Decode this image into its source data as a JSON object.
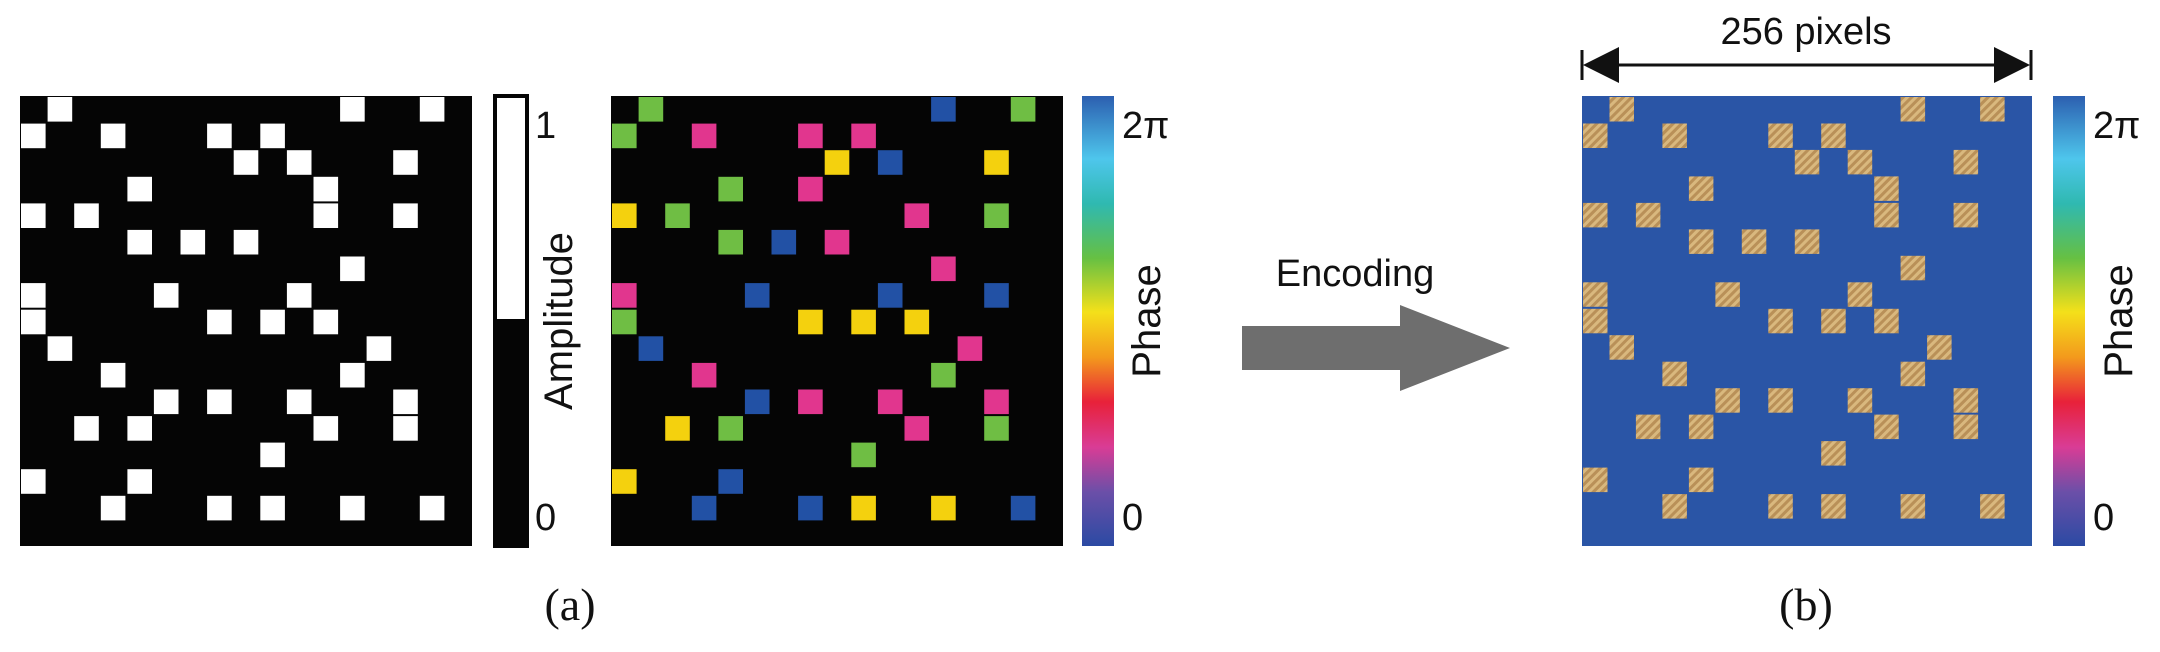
{
  "panel_a": {
    "caption": "(a)",
    "amplitude_bar": {
      "label": "Amplitude",
      "tick_max": "1",
      "tick_min": "0"
    },
    "phase_bar": {
      "label": "Phase",
      "tick_max": "2π",
      "tick_min": "0"
    },
    "grid_size": 16,
    "amplitude_cells": [
      [
        1,
        1
      ],
      [
        15,
        1
      ],
      [
        12,
        1
      ],
      [
        0,
        2
      ],
      [
        3,
        2
      ],
      [
        7,
        2
      ],
      [
        9,
        2
      ],
      [
        8,
        3
      ],
      [
        10,
        3
      ],
      [
        14,
        3
      ],
      [
        4,
        4
      ],
      [
        11,
        4
      ],
      [
        0,
        5
      ],
      [
        2,
        5
      ],
      [
        11,
        5
      ],
      [
        14,
        5
      ],
      [
        4,
        6
      ],
      [
        6,
        6
      ],
      [
        8,
        6
      ],
      [
        12,
        7
      ],
      [
        0,
        8
      ],
      [
        5,
        8
      ],
      [
        10,
        8
      ],
      [
        0,
        9
      ],
      [
        7,
        9
      ],
      [
        9,
        9
      ],
      [
        11,
        9
      ],
      [
        1,
        10
      ],
      [
        13,
        10
      ],
      [
        3,
        11
      ],
      [
        12,
        11
      ],
      [
        5,
        12
      ],
      [
        7,
        12
      ],
      [
        10,
        12
      ],
      [
        14,
        12
      ],
      [
        14,
        13
      ],
      [
        2,
        13
      ],
      [
        4,
        13
      ],
      [
        11,
        13
      ],
      [
        9,
        14
      ],
      [
        0,
        15
      ],
      [
        4,
        15
      ],
      [
        3,
        16
      ],
      [
        7,
        16
      ],
      [
        9,
        16
      ],
      [
        12,
        16
      ],
      [
        15,
        16
      ]
    ],
    "phase_cells": [
      [
        1,
        1,
        "green"
      ],
      [
        12,
        1,
        "blue"
      ],
      [
        15,
        1,
        "green"
      ],
      [
        0,
        2,
        "green"
      ],
      [
        3,
        2,
        "magenta"
      ],
      [
        7,
        2,
        "magenta"
      ],
      [
        9,
        2,
        "magenta"
      ],
      [
        8,
        3,
        "yellow"
      ],
      [
        10,
        3,
        "blue"
      ],
      [
        14,
        3,
        "yellow"
      ],
      [
        4,
        4,
        "green"
      ],
      [
        7,
        4,
        "magenta"
      ],
      [
        0,
        5,
        "yellow"
      ],
      [
        2,
        5,
        "green"
      ],
      [
        11,
        5,
        "magenta"
      ],
      [
        14,
        5,
        "green"
      ],
      [
        4,
        6,
        "green"
      ],
      [
        6,
        6,
        "blue"
      ],
      [
        8,
        6,
        "magenta"
      ],
      [
        12,
        7,
        "magenta"
      ],
      [
        0,
        8,
        "magenta"
      ],
      [
        5,
        8,
        "blue"
      ],
      [
        10,
        8,
        "blue"
      ],
      [
        14,
        8,
        "blue"
      ],
      [
        0,
        9,
        "green"
      ],
      [
        7,
        9,
        "yellow"
      ],
      [
        9,
        9,
        "yellow"
      ],
      [
        11,
        9,
        "yellow"
      ],
      [
        1,
        10,
        "blue"
      ],
      [
        13,
        10,
        "magenta"
      ],
      [
        3,
        11,
        "magenta"
      ],
      [
        12,
        11,
        "green"
      ],
      [
        5,
        12,
        "blue"
      ],
      [
        7,
        12,
        "magenta"
      ],
      [
        10,
        12,
        "magenta"
      ],
      [
        14,
        12,
        "magenta"
      ],
      [
        2,
        13,
        "yellow"
      ],
      [
        4,
        13,
        "green"
      ],
      [
        11,
        13,
        "magenta"
      ],
      [
        14,
        13,
        "green"
      ],
      [
        9,
        14,
        "green"
      ],
      [
        0,
        15,
        "yellow"
      ],
      [
        4,
        15,
        "blue"
      ],
      [
        3,
        16,
        "blue"
      ],
      [
        7,
        16,
        "blue"
      ],
      [
        9,
        16,
        "yellow"
      ],
      [
        12,
        16,
        "yellow"
      ],
      [
        15,
        16,
        "blue"
      ]
    ]
  },
  "arrow": {
    "label": "Encoding"
  },
  "panel_b": {
    "caption": "(b)",
    "dimension_label": "256 pixels",
    "phase_bar": {
      "label": "Phase",
      "tick_max": "2π",
      "tick_min": "0"
    }
  },
  "colors": {
    "black": "#050505",
    "white": "#ffffff",
    "green": "#6fbe44",
    "magenta": "#e1368e",
    "yellow": "#f4d10e",
    "blue": "#2251a5",
    "encoded_bg": "#2a55a6",
    "hatch": "#c9a46a",
    "arrow": "#6e6e6e"
  }
}
